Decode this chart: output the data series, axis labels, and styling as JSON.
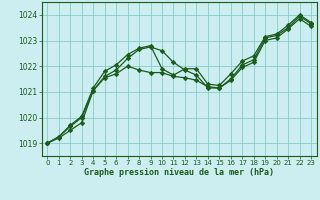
{
  "title": "Graphe pression niveau de la mer (hPa)",
  "bg_color": "#cceef0",
  "line_color": "#1a5c1a",
  "grid_color": "#88cccc",
  "xlim": [
    -0.5,
    23.5
  ],
  "ylim": [
    1018.5,
    1024.5
  ],
  "yticks": [
    1019,
    1020,
    1021,
    1022,
    1023,
    1024
  ],
  "xticks": [
    0,
    1,
    2,
    3,
    4,
    5,
    6,
    7,
    8,
    9,
    10,
    11,
    12,
    13,
    14,
    15,
    16,
    17,
    18,
    19,
    20,
    21,
    22,
    23
  ],
  "xtick_labels": [
    "0",
    "1",
    "2",
    "3",
    "4",
    "5",
    "6",
    "7",
    "8",
    "9",
    "10",
    "11",
    "12",
    "13",
    "14",
    "15",
    "16",
    "17",
    "18",
    "19",
    "20",
    "21",
    "22",
    "23"
  ],
  "series": [
    [
      1019.0,
      1019.2,
      1019.5,
      1019.8,
      1021.05,
      1021.6,
      1021.85,
      1022.3,
      1022.65,
      1022.75,
      1022.6,
      1022.15,
      1021.85,
      1021.65,
      1021.15,
      1021.15,
      1021.5,
      1022.05,
      1022.25,
      1023.1,
      1023.2,
      1023.5,
      1023.95,
      1023.65
    ],
    [
      1019.0,
      1019.25,
      1019.65,
      1020.0,
      1021.05,
      1021.55,
      1021.7,
      1022.0,
      1021.85,
      1021.75,
      1021.75,
      1021.6,
      1021.55,
      1021.45,
      1021.2,
      1021.15,
      1021.45,
      1021.95,
      1022.15,
      1023.0,
      1023.1,
      1023.45,
      1023.85,
      1023.55
    ],
    [
      1019.0,
      1019.25,
      1019.7,
      1020.05,
      1021.15,
      1021.8,
      1022.05,
      1022.45,
      1022.7,
      1022.8,
      1021.9,
      1021.65,
      1021.9,
      1021.9,
      1021.3,
      1021.25,
      1021.7,
      1022.2,
      1022.4,
      1023.15,
      1023.25,
      1023.6,
      1024.0,
      1023.7
    ]
  ],
  "figsize": [
    3.2,
    2.0
  ],
  "dpi": 100
}
